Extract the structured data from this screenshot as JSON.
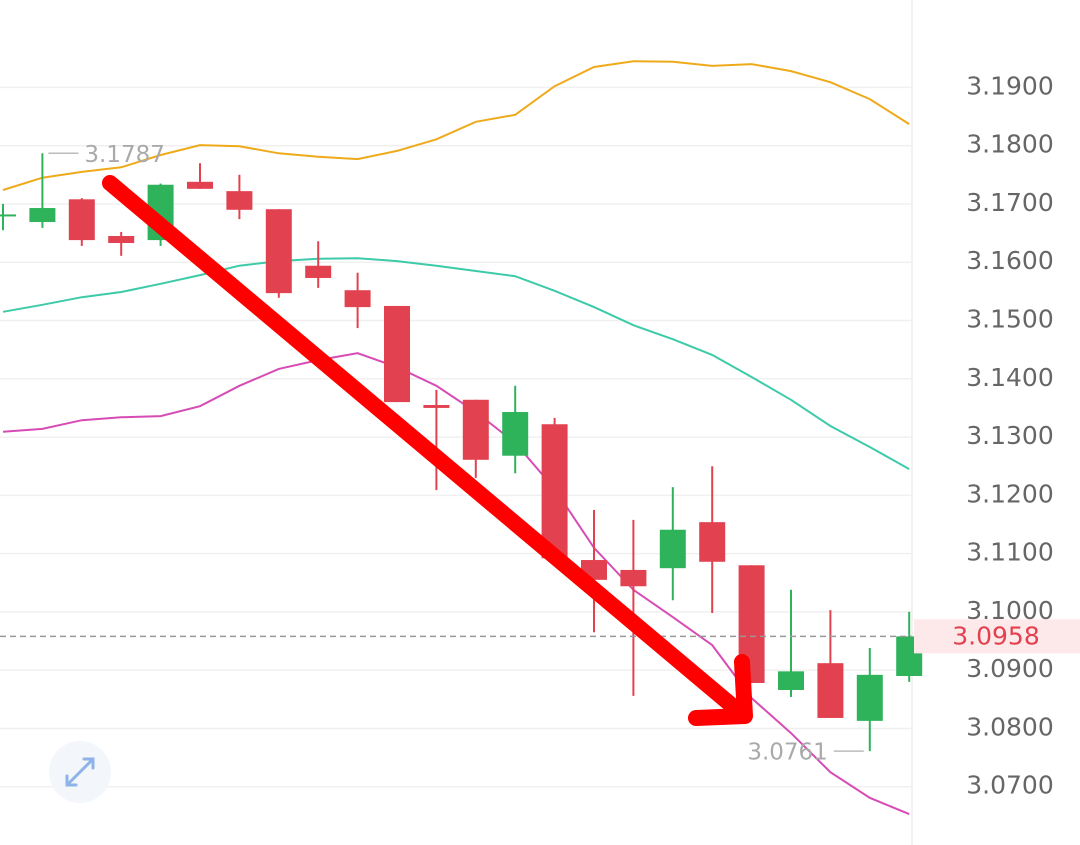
{
  "chart_data": {
    "type": "candlestick",
    "open": [
      3.168,
      3.1669,
      3.1708,
      3.1645,
      3.1638,
      3.1738,
      3.1722,
      3.1691,
      3.1594,
      3.1552,
      3.1525,
      3.1355,
      3.1364,
      3.1268,
      3.1322,
      3.1089,
      3.1072,
      3.1075,
      3.1154,
      3.108,
      3.0866,
      3.0912,
      3.0813,
      3.089
    ],
    "high": [
      3.17,
      3.1787,
      3.171,
      3.1652,
      3.1735,
      3.177,
      3.175,
      3.1691,
      3.1636,
      3.1582,
      3.1525,
      3.1381,
      3.1364,
      3.1388,
      3.1333,
      3.1175,
      3.1158,
      3.1214,
      3.125,
      3.108,
      3.1038,
      3.1003,
      3.0938,
      3.1
    ],
    "low": [
      3.1655,
      3.1659,
      3.1628,
      3.1611,
      3.1628,
      3.1726,
      3.1674,
      3.1539,
      3.1556,
      3.1487,
      3.136,
      3.1209,
      3.123,
      3.1238,
      3.1092,
      3.0965,
      3.0856,
      3.102,
      3.0998,
      3.0878,
      3.0854,
      3.0818,
      3.0761,
      3.088
    ],
    "close": [
      3.1682,
      3.1693,
      3.1638,
      3.1633,
      3.1733,
      3.1726,
      3.169,
      3.1547,
      3.1573,
      3.1523,
      3.136,
      3.135,
      3.1261,
      3.1343,
      3.1092,
      3.1055,
      3.1044,
      3.1141,
      3.1086,
      3.0878,
      3.0898,
      3.0818,
      3.0892,
      3.0958
    ],
    "up_color": "#2eb35b",
    "down_color": "#e2424f",
    "series": [
      {
        "color": "#eeaa1a",
        "values": [
          3.1724,
          3.1745,
          3.1755,
          3.1763,
          3.1784,
          3.1801,
          3.1799,
          3.1787,
          3.1781,
          3.1777,
          3.1791,
          3.1811,
          3.1841,
          3.1853,
          3.1902,
          3.1935,
          3.1945,
          3.1944,
          3.1937,
          3.194,
          3.1928,
          3.1909,
          3.188,
          3.1837
        ]
      },
      {
        "color": "#3dcaa8",
        "values": [
          3.1515,
          3.1527,
          3.154,
          3.1549,
          3.1563,
          3.1578,
          3.1594,
          3.1602,
          3.1606,
          3.1607,
          3.1602,
          3.1594,
          3.1585,
          3.1576,
          3.1551,
          3.1523,
          3.1492,
          3.1468,
          3.1441,
          3.1403,
          3.1364,
          3.1319,
          3.1283,
          3.1245
        ]
      },
      {
        "color": "#d74bb5",
        "values": [
          3.1309,
          3.1314,
          3.1329,
          3.1334,
          3.1336,
          3.1353,
          3.1388,
          3.1417,
          3.1432,
          3.1444,
          3.142,
          3.1388,
          3.1343,
          3.129,
          3.1211,
          3.111,
          3.1038,
          3.0991,
          3.0943,
          3.0852,
          3.0792,
          3.0725,
          3.0681,
          3.0653
        ]
      }
    ],
    "ylim": [
      3.06,
      3.205
    ],
    "yticks": [
      {
        "value": 3.07,
        "label": "3.0700"
      },
      {
        "value": 3.08,
        "label": "3.0800"
      },
      {
        "value": 3.09,
        "label": "3.0900"
      },
      {
        "value": 3.1,
        "label": "3.1000"
      },
      {
        "value": 3.11,
        "label": "3.1100"
      },
      {
        "value": 3.12,
        "label": "3.1200"
      },
      {
        "value": 3.13,
        "label": "3.1300"
      },
      {
        "value": 3.14,
        "label": "3.1400"
      },
      {
        "value": 3.15,
        "label": "3.1500"
      },
      {
        "value": 3.16,
        "label": "3.1600"
      },
      {
        "value": 3.17,
        "label": "3.1700"
      },
      {
        "value": 3.18,
        "label": "3.1800"
      },
      {
        "value": 3.19,
        "label": "3.1900"
      }
    ],
    "grid": true,
    "high_marker": {
      "value": 3.1787,
      "label": "3.1787"
    },
    "low_marker": {
      "value": 3.0761,
      "label": "3.0761"
    },
    "last_price": {
      "value": 3.0958,
      "label": "3.0958"
    }
  }
}
